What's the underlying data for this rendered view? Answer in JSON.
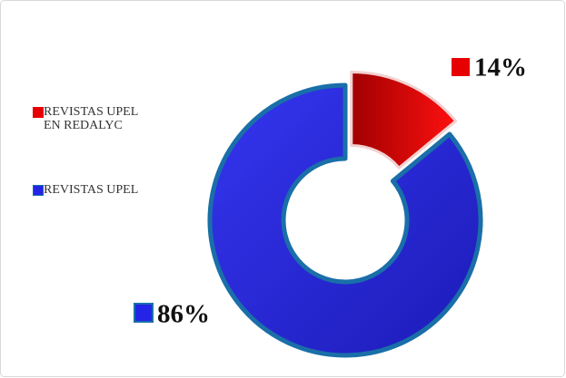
{
  "chart_data": {
    "type": "donut",
    "categories": [
      "REVISTAS UPEL EN REDALYC",
      "REVISTAS UPEL"
    ],
    "values": [
      14,
      86
    ],
    "value_labels": [
      "14%",
      "86%"
    ],
    "colors": [
      "#e60000",
      "#2424e6"
    ]
  }
}
